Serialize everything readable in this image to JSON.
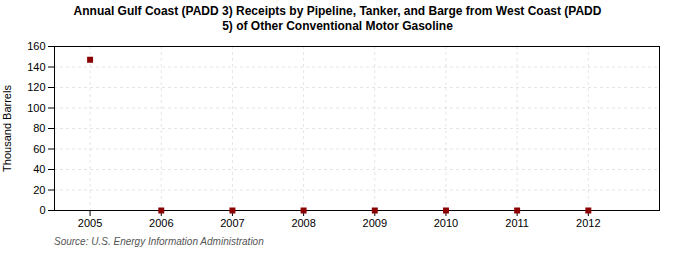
{
  "chart_data": {
    "type": "scatter",
    "title": "Annual Gulf Coast (PADD 3) Receipts by Pipeline, Tanker, and Barge from West Coast (PADD\n5) of Other Conventional Motor Gasoline",
    "ylabel": "Thousand Barrels",
    "source": "Source: U.S. Energy Information Administration",
    "x": [
      2005,
      2006,
      2007,
      2008,
      2009,
      2010,
      2011,
      2012
    ],
    "values": [
      147,
      0,
      0,
      0,
      0,
      0,
      0,
      0
    ],
    "color": "#8B0000",
    "marker": "square",
    "xlim": [
      2004.5,
      2013.0
    ],
    "ylim": [
      0,
      160
    ],
    "xticks": [
      2005,
      2006,
      2007,
      2008,
      2009,
      2010,
      2011,
      2012
    ],
    "yticks": [
      0,
      20,
      40,
      60,
      80,
      100,
      120,
      140,
      160
    ],
    "grid": true
  }
}
